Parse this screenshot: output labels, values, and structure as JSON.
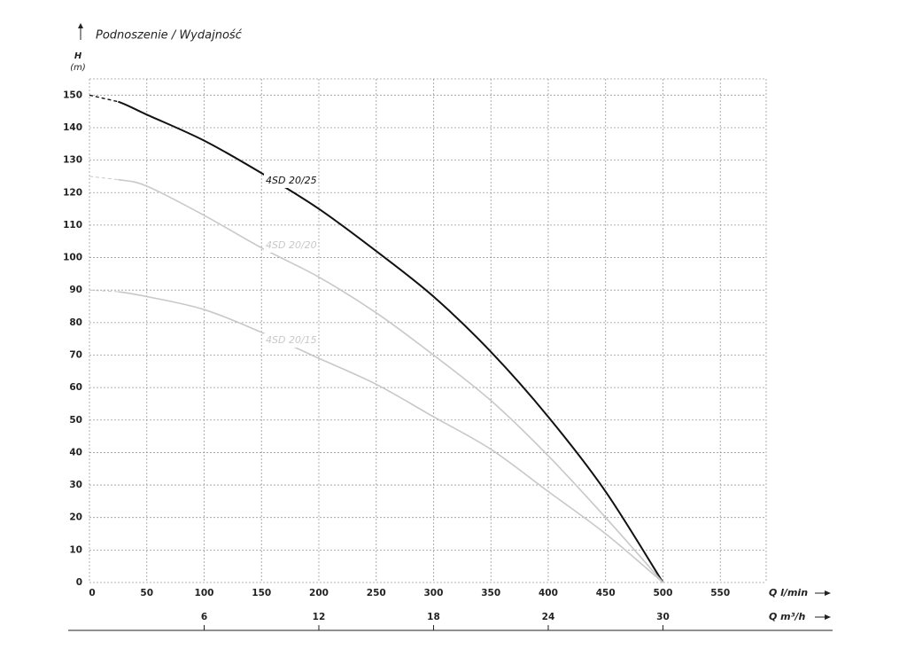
{
  "chart_data": {
    "type": "line",
    "title": "Podnoszenie / Wydajność",
    "y_label": "H",
    "y_unit": "(m)",
    "x_label": "Q l/min",
    "x2_label": "Q m³/h",
    "x": [
      0,
      25,
      50,
      100,
      150,
      200,
      250,
      300,
      350,
      400,
      450,
      500
    ],
    "series": [
      {
        "name": "4SD 20/25",
        "color": "#111111",
        "values": [
          150,
          148,
          144,
          136,
          126,
          115,
          102,
          88,
          71,
          51,
          28,
          0
        ]
      },
      {
        "name": "4SD 20/20",
        "color": "#c8c8c8",
        "values": [
          125,
          124,
          122,
          113,
          103,
          94,
          83,
          70,
          56,
          39,
          20,
          0
        ]
      },
      {
        "name": "4SD 20/15",
        "color": "#c8c8c8",
        "values": [
          90,
          89.5,
          88,
          84,
          77,
          69,
          61,
          51,
          41,
          28,
          15,
          0
        ]
      }
    ],
    "xlim": [
      0,
      590
    ],
    "xticks": [
      0,
      50,
      100,
      150,
      200,
      250,
      300,
      350,
      400,
      450,
      500,
      550
    ],
    "x2lim": [
      0,
      35.4
    ],
    "x2ticks": [
      6,
      12,
      18,
      24,
      30
    ],
    "ylim": [
      0,
      155
    ],
    "yticks": [
      0,
      10,
      20,
      30,
      40,
      50,
      60,
      70,
      80,
      90,
      100,
      110,
      120,
      130,
      140,
      150
    ],
    "grid": true
  }
}
